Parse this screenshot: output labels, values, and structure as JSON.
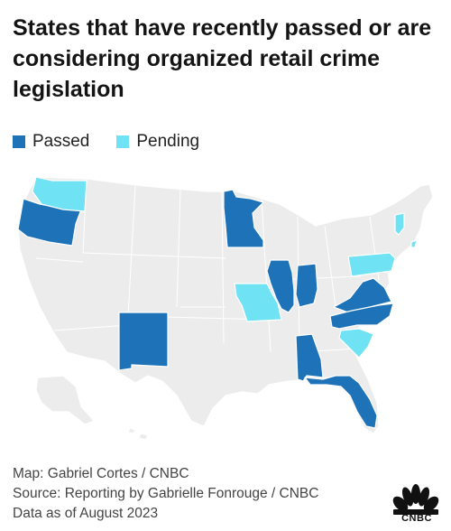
{
  "title": "States that have recently passed or are considering organized retail crime legislation",
  "legend": {
    "passed_label": "Passed",
    "pending_label": "Pending"
  },
  "colors": {
    "passed": "#1e73b8",
    "pending": "#6fe2f3",
    "other_state": "#ececec",
    "background": "#ffffff",
    "border": "#ffffff"
  },
  "map_data": {
    "passed": [
      "Oregon",
      "Minnesota",
      "Illinois",
      "Indiana",
      "Virginia",
      "North Carolina",
      "New Mexico",
      "Alabama",
      "Florida"
    ],
    "pending": [
      "Washington",
      "Missouri",
      "Pennsylvania",
      "South Carolina",
      "Vermont",
      "New Jersey"
    ]
  },
  "credits": {
    "map": "Map: Gabriel Cortes / CNBC",
    "source": "Source: Reporting by Gabrielle Fonrouge / CNBC",
    "date": "Data as of August 2023"
  },
  "logo": {
    "name": "peacock-logo",
    "text": "CNBC"
  }
}
